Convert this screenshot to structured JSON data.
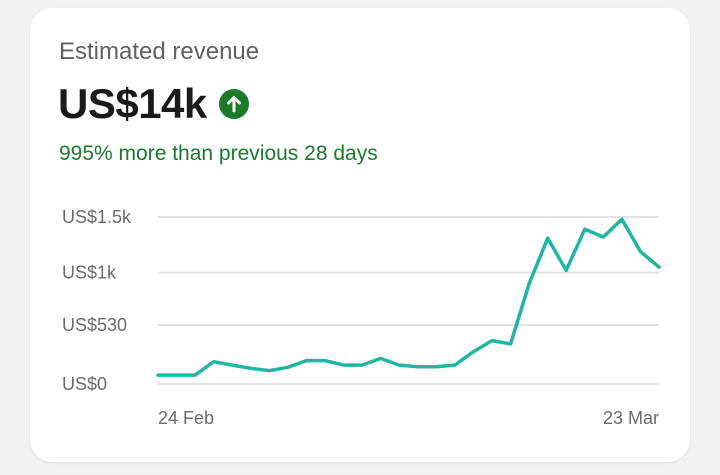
{
  "card": {
    "title": "Estimated revenue",
    "value": "US$14k",
    "trend_icon": "arrow-up-circle-icon",
    "delta_text": "995% more than previous 28 days"
  },
  "colors": {
    "line": "#21b5a3",
    "grid": "#e3e3e3",
    "positive": "#1b7a2b",
    "icon_bg": "#1b7a2b"
  },
  "chart_data": {
    "type": "line",
    "title": "",
    "xlabel": "",
    "ylabel": "",
    "ylim": [
      0,
      1500
    ],
    "yticks": [
      {
        "value": 0,
        "label": "US$0"
      },
      {
        "value": 530,
        "label": "US$530"
      },
      {
        "value": 1000,
        "label": "US$1k"
      },
      {
        "value": 1500,
        "label": "US$1.5k"
      }
    ],
    "x_labels": [
      "24 Feb",
      "23 Mar"
    ],
    "grid": true,
    "series": [
      {
        "values": [
          80,
          80,
          80,
          200,
          170,
          140,
          120,
          150,
          210,
          210,
          170,
          170,
          230,
          170,
          155,
          155,
          170,
          290,
          390,
          360,
          900,
          1310,
          1020,
          1390,
          1320,
          1480,
          1190,
          1050
        ]
      }
    ]
  }
}
